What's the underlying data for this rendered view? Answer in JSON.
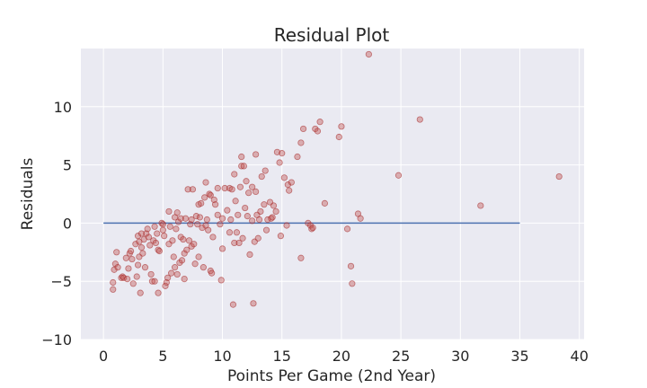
{
  "chart_data": {
    "type": "scatter",
    "title": "Residual Plot",
    "xlabel": "Points Per Game (2nd Year)",
    "ylabel": "Residuals",
    "xlim": [
      -1.9,
      40.4
    ],
    "ylim": [
      -10,
      15
    ],
    "xticks": [
      0,
      5,
      10,
      15,
      20,
      25,
      30,
      35,
      40
    ],
    "yticks": [
      -10,
      -5,
      0,
      5,
      10
    ],
    "grid": true,
    "colors": {
      "background": "#eaeaf2",
      "grid": "#ffffff",
      "points_fill": "#c0504d",
      "points_stroke": "#a52a2a",
      "reference_line": "#4c72b0"
    },
    "reference_line": {
      "y": 0,
      "x_start": 0,
      "x_end": 35
    },
    "points": [
      [
        0.8,
        -5.7
      ],
      [
        0.8,
        -5.1
      ],
      [
        0.9,
        -4
      ],
      [
        1,
        -3.5
      ],
      [
        1.1,
        -2.5
      ],
      [
        1.2,
        -3.8
      ],
      [
        1.5,
        -4.7
      ],
      [
        1.6,
        -4.6
      ],
      [
        1.7,
        -4.7
      ],
      [
        1.9,
        -3
      ],
      [
        2.0,
        -4.8
      ],
      [
        2.1,
        -3.9
      ],
      [
        2.2,
        -2.6
      ],
      [
        2.3,
        -2.4
      ],
      [
        2.4,
        -3.1
      ],
      [
        2.5,
        -5.2
      ],
      [
        2.7,
        -1.8
      ],
      [
        2.8,
        -4.6
      ],
      [
        2.9,
        -3.6
      ],
      [
        2.9,
        -1.1
      ],
      [
        3.0,
        -1.6
      ],
      [
        3.0,
        -2.9
      ],
      [
        3.1,
        -6
      ],
      [
        3.2,
        -2.1
      ],
      [
        3.2,
        -0.9
      ],
      [
        3.3,
        -2.6
      ],
      [
        3.4,
        -1.4
      ],
      [
        3.5,
        -3.8
      ],
      [
        3.6,
        -0.9
      ],
      [
        3.7,
        -0.5
      ],
      [
        3.8,
        -1.2
      ],
      [
        3.9,
        -1.9
      ],
      [
        4.0,
        -4.4
      ],
      [
        4.1,
        -5
      ],
      [
        4.2,
        -1.5
      ],
      [
        4.3,
        -5
      ],
      [
        4.3,
        -0.3
      ],
      [
        4.4,
        -1.7
      ],
      [
        4.5,
        -0.9
      ],
      [
        4.6,
        -2.3
      ],
      [
        4.6,
        -6
      ],
      [
        4.7,
        -2.4
      ],
      [
        4.9,
        0
      ],
      [
        5.0,
        -0.1
      ],
      [
        5.0,
        -0.6
      ],
      [
        5.1,
        -1.1
      ],
      [
        5.2,
        -5.4
      ],
      [
        5.3,
        -5.1
      ],
      [
        5.4,
        -4.7
      ],
      [
        5.5,
        1.0
      ],
      [
        5.5,
        -1.8
      ],
      [
        5.6,
        -0.3
      ],
      [
        5.7,
        -4.3
      ],
      [
        5.8,
        -1.5
      ],
      [
        5.9,
        -2.9
      ],
      [
        6.0,
        0.5
      ],
      [
        6.0,
        -3.8
      ],
      [
        6.1,
        -0.5
      ],
      [
        6.2,
        -4.4
      ],
      [
        6.2,
        0.9
      ],
      [
        6.3,
        0.1
      ],
      [
        6.4,
        -3.4
      ],
      [
        6.5,
        0.4
      ],
      [
        6.5,
        -1.2
      ],
      [
        6.6,
        -3.2
      ],
      [
        6.7,
        -1.4
      ],
      [
        6.8,
        -2.6
      ],
      [
        6.8,
        -4.8
      ],
      [
        6.9,
        0.4
      ],
      [
        7.0,
        -2.3
      ],
      [
        7.1,
        2.9
      ],
      [
        7.2,
        -1.5
      ],
      [
        7.3,
        -0.1
      ],
      [
        7.4,
        -2.0
      ],
      [
        7.4,
        0.3
      ],
      [
        7.5,
        2.9
      ],
      [
        7.6,
        -1.8
      ],
      [
        7.7,
        -3.5
      ],
      [
        7.8,
        0.6
      ],
      [
        7.9,
        -0.1
      ],
      [
        8.0,
        1.6
      ],
      [
        8.0,
        -2.9
      ],
      [
        8.1,
        0.5
      ],
      [
        8.2,
        1.7
      ],
      [
        8.3,
        -0.4
      ],
      [
        8.4,
        -3.8
      ],
      [
        8.5,
        2.2
      ],
      [
        8.6,
        3.5
      ],
      [
        8.6,
        -0.2
      ],
      [
        8.7,
        0.3
      ],
      [
        8.8,
        -0.6
      ],
      [
        8.9,
        2.5
      ],
      [
        9.0,
        2.4
      ],
      [
        9.0,
        -4.1
      ],
      [
        9.1,
        -4.3
      ],
      [
        9.2,
        -1.2
      ],
      [
        9.3,
        2.0
      ],
      [
        9.4,
        1.6
      ],
      [
        9.6,
        0.7
      ],
      [
        9.6,
        3.0
      ],
      [
        9.8,
        -0.1
      ],
      [
        9.9,
        -4.9
      ],
      [
        10.0,
        -2.2
      ],
      [
        10.0,
        0.4
      ],
      [
        10.2,
        3.0
      ],
      [
        10.4,
        1.1
      ],
      [
        10.6,
        -0.8
      ],
      [
        10.6,
        3.0
      ],
      [
        10.7,
        0.3
      ],
      [
        10.8,
        2.9
      ],
      [
        10.9,
        -7.0
      ],
      [
        11.0,
        4.2
      ],
      [
        11.0,
        -1.7
      ],
      [
        11.1,
        1.9
      ],
      [
        11.2,
        -0.8
      ],
      [
        11.3,
        0.7
      ],
      [
        11.4,
        -1.7
      ],
      [
        11.5,
        3.1
      ],
      [
        11.6,
        4.9
      ],
      [
        11.6,
        5.7
      ],
      [
        11.7,
        -1.3
      ],
      [
        11.8,
        4.9
      ],
      [
        11.9,
        1.3
      ],
      [
        12.0,
        3.6
      ],
      [
        12.1,
        0.6
      ],
      [
        12.2,
        2.6
      ],
      [
        12.3,
        -2.7
      ],
      [
        12.5,
        3.1
      ],
      [
        12.5,
        0.2
      ],
      [
        12.6,
        -6.9
      ],
      [
        12.7,
        -1.6
      ],
      [
        12.8,
        5.9
      ],
      [
        12.8,
        2.7
      ],
      [
        12.9,
        0.7
      ],
      [
        13.0,
        -1.3
      ],
      [
        13.1,
        0.3
      ],
      [
        13.2,
        1.0
      ],
      [
        13.3,
        4.0
      ],
      [
        13.5,
        1.6
      ],
      [
        13.6,
        4.5
      ],
      [
        13.7,
        -0.6
      ],
      [
        13.8,
        0.3
      ],
      [
        14.0,
        1.8
      ],
      [
        14.1,
        0.4
      ],
      [
        14.2,
        0.5
      ],
      [
        14.3,
        1.5
      ],
      [
        14.5,
        1.0
      ],
      [
        14.6,
        6.1
      ],
      [
        14.8,
        5.2
      ],
      [
        14.9,
        -1.1
      ],
      [
        15.0,
        6.0
      ],
      [
        15.2,
        3.9
      ],
      [
        15.4,
        -0.2
      ],
      [
        15.5,
        3.3
      ],
      [
        15.6,
        2.8
      ],
      [
        15.8,
        3.5
      ],
      [
        16.3,
        5.7
      ],
      [
        16.6,
        -3.0
      ],
      [
        16.6,
        6.9
      ],
      [
        16.8,
        8.1
      ],
      [
        17.2,
        0.0
      ],
      [
        17.4,
        -0.2
      ],
      [
        17.5,
        -0.5
      ],
      [
        17.6,
        -0.4
      ],
      [
        17.8,
        8.1
      ],
      [
        18.0,
        7.9
      ],
      [
        18.2,
        8.7
      ],
      [
        18.6,
        1.7
      ],
      [
        19.8,
        7.4
      ],
      [
        20.0,
        8.3
      ],
      [
        20.5,
        -0.5
      ],
      [
        20.8,
        -3.7
      ],
      [
        20.9,
        -5.2
      ],
      [
        21.4,
        0.8
      ],
      [
        21.6,
        0.4
      ],
      [
        22.3,
        14.5
      ],
      [
        24.8,
        4.1
      ],
      [
        26.6,
        8.9
      ],
      [
        31.7,
        1.5
      ],
      [
        38.3,
        4.0
      ]
    ]
  }
}
